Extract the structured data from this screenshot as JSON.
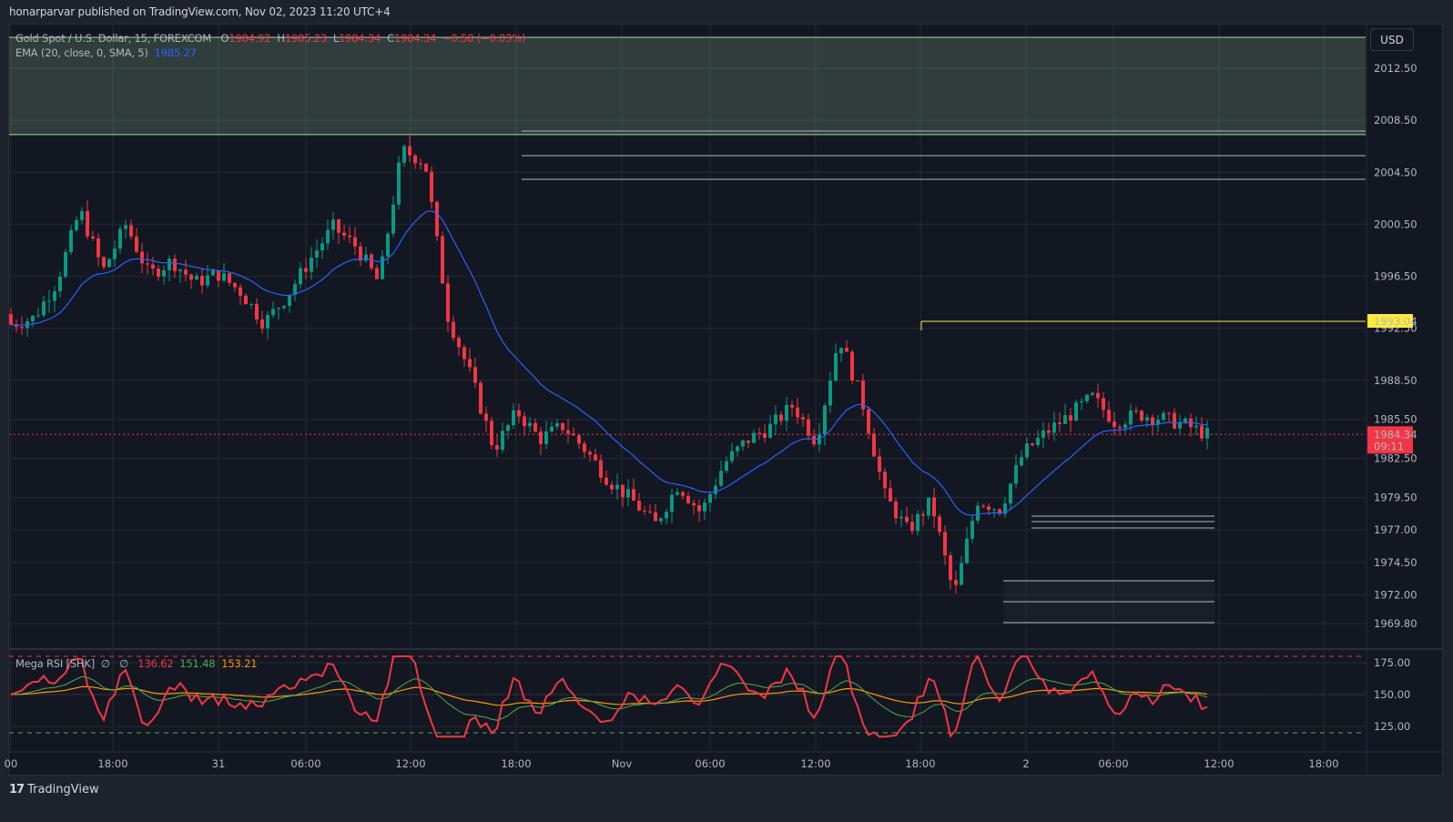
{
  "header": {
    "publish_line": "honarparvar published on TradingView.com, Nov 02, 2023 11:20 UTC+4"
  },
  "legend": {
    "symbol": "Gold Spot / U.S. Dollar, 15, FOREXCOM",
    "o_label": "O",
    "o_value": "1984.92",
    "h_label": "H",
    "h_value": "1985.23",
    "l_label": "L",
    "l_value": "1984.34",
    "c_label": "C",
    "c_value": "1984.34",
    "change": "−0.58 (−0.03%)",
    "ema_label": "EMA (20, close, 0, SMA, 5)",
    "ema_value": "1985.27"
  },
  "rsi_legend": {
    "label": "Mega RSI [SHK]",
    "sym1": "∅",
    "sym2": "∅",
    "v1": "136.62",
    "v2": "151.48",
    "v3": "153.21"
  },
  "currency_button": "USD",
  "footer": {
    "logo": "17",
    "brand": "TradingView"
  },
  "colors": {
    "up": "#089981",
    "down": "#f23645",
    "ema": "#2962ff",
    "rsi": "#f23645",
    "rsi_fast": "#4caf50",
    "rsi_slow": "#ff9800",
    "zone_line": "#a5d6a7",
    "alert_line": "#ffeb3b",
    "bg": "#131722",
    "grid": "#242832"
  },
  "chart_data": [
    {
      "type": "candlestick",
      "title": "Gold Spot / U.S. Dollar, 15, FOREXCOM",
      "ylabel": "USD",
      "price_ticks": [
        "2012.50",
        "2008.50",
        "2004.50",
        "2000.50",
        "1996.50",
        "1992.50",
        "1988.50",
        "1985.50",
        "1982.50",
        "1979.50",
        "1977.00",
        "1974.50",
        "1972.00",
        "1969.80"
      ],
      "time_ticks": [
        "00",
        "18:00",
        "31",
        "06:00",
        "12:00",
        "18:00",
        "Nov",
        "06:00",
        "12:00",
        "18:00",
        "2",
        "06:00",
        "12:00",
        "18:00"
      ],
      "ylim": [
        1968.5,
        2014.5
      ],
      "last_price": "1984.34",
      "countdown": "09:11",
      "alert_level": "1993.04",
      "supply_zone": [
        2007.4,
        2015.0
      ],
      "horizontal_levels": [
        2007.7,
        2005.7,
        2003.8,
        1978.3,
        1977.9,
        1977.5,
        1972.8,
        1971.2,
        1969.6
      ],
      "ema": {
        "name": "EMA (20, close, 0, SMA, 5)",
        "last": 1985.27
      },
      "candles_ohlc_sampled": [
        [
          1993.6,
          1994.2,
          1992.1,
          1992.8
        ],
        [
          1992.8,
          1994.0,
          1991.6,
          1993.3
        ],
        [
          1993.3,
          1996.6,
          1993.1,
          1996.1
        ],
        [
          1996.1,
          2002.4,
          1995.8,
          2001.6
        ],
        [
          2001.6,
          2002.2,
          1996.0,
          1996.9
        ],
        [
          1996.9,
          2001.5,
          1995.2,
          2000.5
        ],
        [
          2000.5,
          2001.0,
          1995.5,
          1996.6
        ],
        [
          1996.6,
          1998.9,
          1995.8,
          1997.7
        ],
        [
          1997.7,
          1998.8,
          1995.3,
          1996.0
        ],
        [
          1996.0,
          1997.4,
          1995.5,
          1996.7
        ],
        [
          1996.7,
          1998.0,
          1994.2,
          1995.3
        ],
        [
          1995.3,
          1995.8,
          1992.1,
          1992.9
        ],
        [
          1992.9,
          1995.5,
          1992.5,
          1995.0
        ],
        [
          1995.0,
          1998.2,
          1994.9,
          1997.8
        ],
        [
          1997.8,
          2000.8,
          1997.3,
          2000.3
        ],
        [
          2000.3,
          2001.7,
          1998.2,
          1998.8
        ],
        [
          1998.8,
          1999.8,
          1995.2,
          1996.0
        ],
        [
          1996.0,
          2006.6,
          1996.0,
          2006.2
        ],
        [
          2006.2,
          2008.1,
          2004.6,
          2005.3
        ],
        [
          2005.3,
          2005.6,
          1992.8,
          1993.4
        ],
        [
          1993.4,
          1995.3,
          1986.8,
          1988.8
        ],
        [
          1988.8,
          1990.5,
          1982.9,
          1983.2
        ],
        [
          1983.2,
          1986.5,
          1981.0,
          1986.1
        ],
        [
          1986.1,
          1986.6,
          1983.5,
          1984.0
        ],
        [
          1984.0,
          1986.1,
          1983.3,
          1985.0
        ],
        [
          1985.0,
          1985.3,
          1982.4,
          1983.1
        ],
        [
          1983.1,
          1983.4,
          1980.3,
          1980.8
        ],
        [
          1980.8,
          1981.9,
          1978.8,
          1979.3
        ],
        [
          1979.3,
          1979.8,
          1976.5,
          1977.4
        ],
        [
          1977.4,
          1981.0,
          1977.0,
          1980.5
        ],
        [
          1980.5,
          1981.1,
          1977.9,
          1978.3
        ],
        [
          1978.3,
          1982.3,
          1978.0,
          1982.1
        ],
        [
          1982.1,
          1984.3,
          1982.0,
          1983.9
        ],
        [
          1983.9,
          1985.5,
          1982.5,
          1984.9
        ],
        [
          1984.9,
          1989.4,
          1984.4,
          1986.6
        ],
        [
          1986.6,
          1987.4,
          1981.5,
          1983.8
        ],
        [
          1983.8,
          1993.1,
          1982.0,
          1991.9
        ],
        [
          1991.9,
          1992.3,
          1986.2,
          1986.9
        ],
        [
          1986.9,
          1987.3,
          1979.1,
          1979.6
        ],
        [
          1979.6,
          1980.7,
          1975.6,
          1976.9
        ],
        [
          1976.9,
          1979.5,
          1976.1,
          1979.2
        ],
        [
          1979.2,
          1982.5,
          1971.4,
          1971.9
        ],
        [
          1971.9,
          1980.0,
          1970.2,
          1979.3
        ],
        [
          1979.3,
          1980.6,
          1978.0,
          1978.6
        ],
        [
          1978.6,
          1983.1,
          1978.2,
          1982.9
        ],
        [
          1982.9,
          1984.8,
          1982.6,
          1984.5
        ],
        [
          1984.5,
          1986.3,
          1983.5,
          1985.8
        ],
        [
          1985.8,
          1987.9,
          1984.6,
          1987.2
        ],
        [
          1987.2,
          1987.6,
          1984.9,
          1985.3
        ],
        [
          1985.3,
          1986.6,
          1983.9,
          1985.9
        ],
        [
          1985.9,
          1986.4,
          1984.4,
          1985.6
        ],
        [
          1985.6,
          1986.3,
          1984.5,
          1985.1
        ],
        [
          1985.1,
          1985.9,
          1984.2,
          1984.34
        ]
      ]
    },
    {
      "type": "line",
      "title": "Mega RSI [SHK]",
      "yticks": [
        "175.00",
        "150.00",
        "125.00"
      ],
      "ylim": [
        115,
        182
      ],
      "upper_band": 180,
      "lower_band": 120,
      "series": [
        {
          "name": "RSI",
          "last": 136.62
        },
        {
          "name": "Fast MA",
          "last": 151.48
        },
        {
          "name": "Slow MA",
          "last": 153.21
        }
      ]
    }
  ]
}
